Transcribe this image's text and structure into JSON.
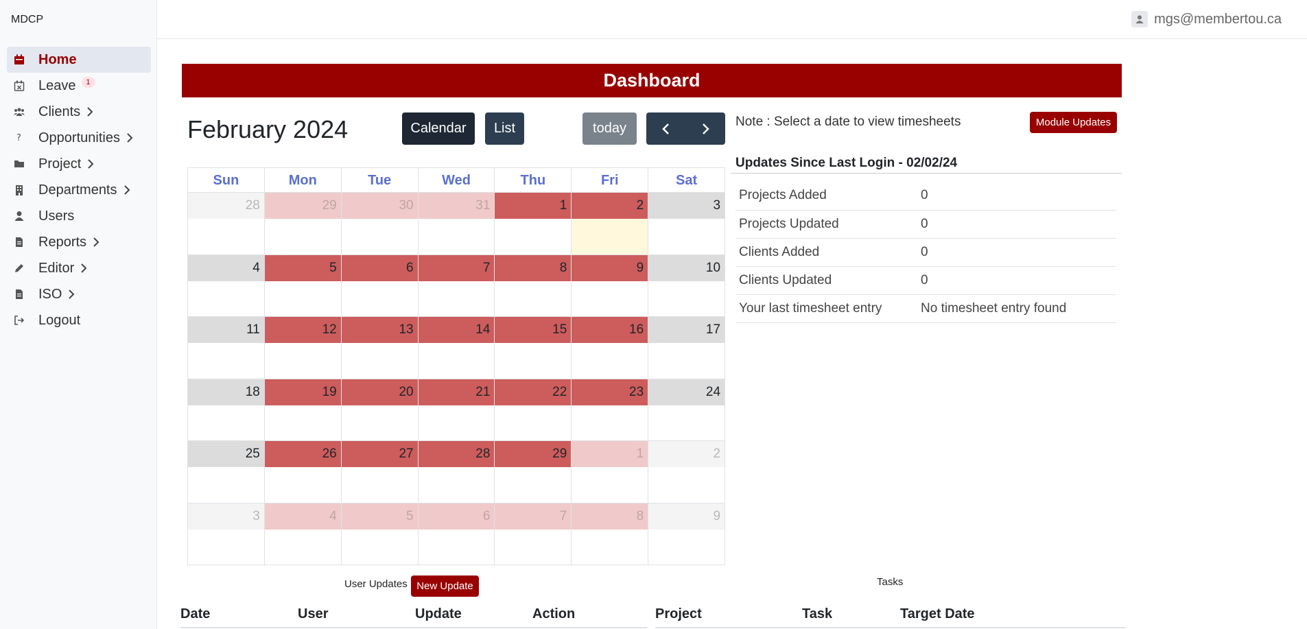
{
  "brand": "MDCP",
  "nav": [
    {
      "label": "Home",
      "icon": "calendar-icon",
      "active": true
    },
    {
      "label": "Leave",
      "icon": "calendar-x-icon",
      "badge": "1"
    },
    {
      "label": "Clients",
      "icon": "users-icon",
      "chevron": true
    },
    {
      "label": "Opportunities",
      "icon": "question-icon",
      "chevron": true
    },
    {
      "label": "Project",
      "icon": "folder-icon",
      "chevron": true
    },
    {
      "label": "Departments",
      "icon": "building-icon",
      "chevron": true
    },
    {
      "label": "Users",
      "icon": "user-icon"
    },
    {
      "label": "Reports",
      "icon": "file-icon",
      "chevron": true
    },
    {
      "label": "Editor",
      "icon": "pencil-icon",
      "chevron": true
    },
    {
      "label": "ISO",
      "icon": "file-icon",
      "chevron": true
    },
    {
      "label": "Logout",
      "icon": "logout-icon"
    }
  ],
  "header": {
    "user_email": "mgs@membertou.ca"
  },
  "dashboard_title": "Dashboard",
  "calendar": {
    "title": "February 2024",
    "buttons": {
      "calendar": "Calendar",
      "list": "List",
      "today": "today"
    },
    "weekdays": [
      "Sun",
      "Mon",
      "Tue",
      "Wed",
      "Thu",
      "Fri",
      "Sat"
    ],
    "weeks": [
      [
        "28",
        "29",
        "30",
        "31",
        "1",
        "2",
        "3"
      ],
      [
        "4",
        "5",
        "6",
        "7",
        "8",
        "9",
        "10"
      ],
      [
        "11",
        "12",
        "13",
        "14",
        "15",
        "16",
        "17"
      ],
      [
        "18",
        "19",
        "20",
        "21",
        "22",
        "23",
        "24"
      ],
      [
        "25",
        "26",
        "27",
        "28",
        "29",
        "1",
        "2"
      ],
      [
        "3",
        "4",
        "5",
        "6",
        "7",
        "8",
        "9"
      ]
    ],
    "today_week": 0,
    "today_day": 5,
    "colors": {
      "weekday": "#cd5c5c",
      "weekend": "#dcdcdc",
      "today": "#fff8dc",
      "header_text": "#5a6fd1"
    }
  },
  "note": "Note : Select a date to view timesheets",
  "module_updates_label": "Module Updates",
  "updates": {
    "title": "Updates Since Last Login - 02/02/24",
    "rows": [
      {
        "label": "Projects Added",
        "value": "0"
      },
      {
        "label": "Projects Updated",
        "value": "0"
      },
      {
        "label": "Clients Added",
        "value": "0"
      },
      {
        "label": "Clients Updated",
        "value": "0"
      },
      {
        "label": "Your last timesheet entry",
        "value": "No timesheet entry found"
      }
    ]
  },
  "user_updates": {
    "label": "User Updates",
    "new_button": "New Update",
    "columns": [
      "Date",
      "User",
      "Update",
      "Action"
    ]
  },
  "tasks": {
    "label": "Tasks",
    "columns": [
      "Project",
      "Task",
      "Target Date"
    ]
  },
  "accent_color": "#990000"
}
